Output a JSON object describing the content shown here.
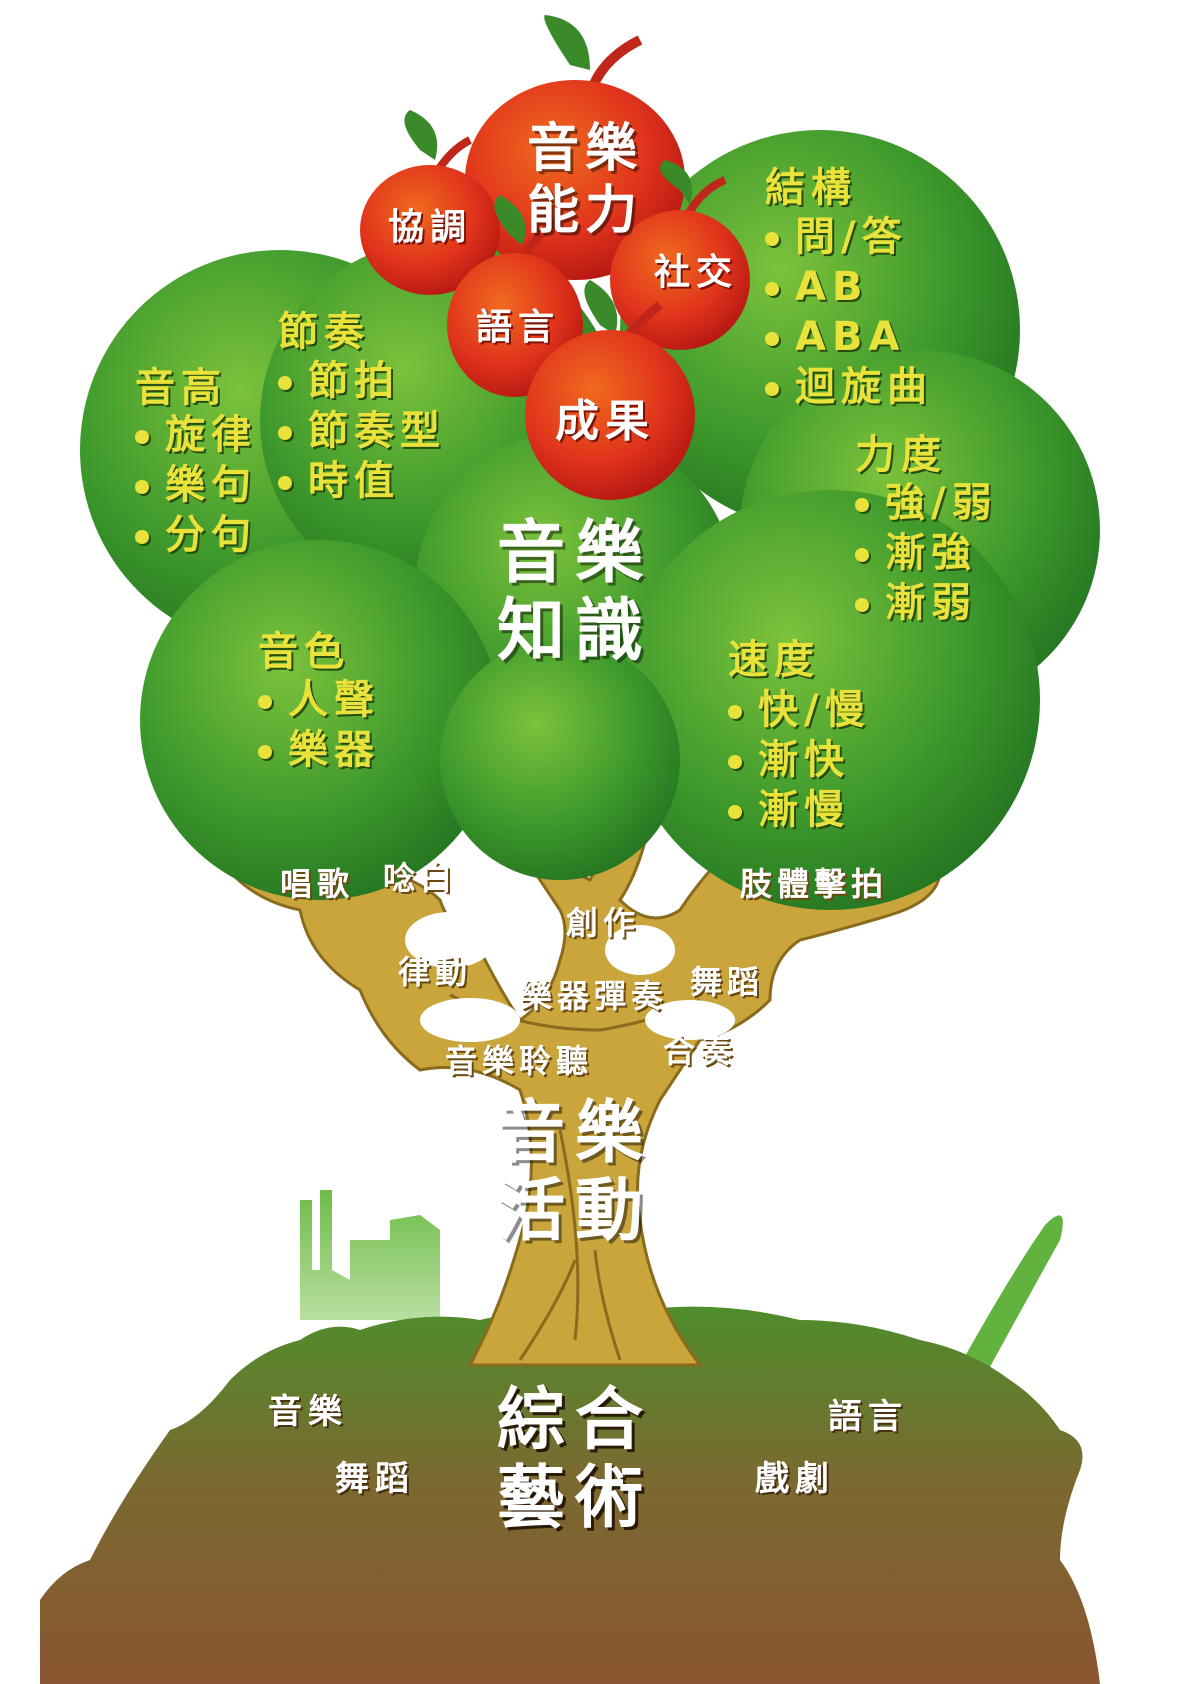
{
  "apples": {
    "main": "音樂能力",
    "coordination": "協調",
    "social": "社交",
    "language": "語言",
    "outcome": "成果"
  },
  "knowledge": {
    "center": "音樂知識",
    "structure": {
      "title": "結構",
      "items": [
        "問/答",
        "AB",
        "ABA",
        "迴旋曲"
      ]
    },
    "rhythm": {
      "title": "節奏",
      "items": [
        "節拍",
        "節奏型",
        "時值"
      ]
    },
    "pitch": {
      "title": "音高",
      "items": [
        "旋律",
        "樂句",
        "分句"
      ]
    },
    "dynamics": {
      "title": "力度",
      "items": [
        "強/弱",
        "漸強",
        "漸弱"
      ]
    },
    "timbre": {
      "title": "音色",
      "items": [
        "人聲",
        "樂器"
      ]
    },
    "tempo": {
      "title": "速度",
      "items": [
        "快/慢",
        "漸快",
        "漸慢"
      ]
    }
  },
  "activities": {
    "center": "音樂活動",
    "singing": "唱歌",
    "chanting": "唸白",
    "body_percussion": "肢體擊拍",
    "creating": "創作",
    "movement": "律動",
    "instrumental": "樂器彈奏",
    "dance": "舞蹈",
    "listening": "音樂聆聽",
    "ensemble": "合奏"
  },
  "integrated_arts": {
    "center": "綜合藝術",
    "music": "音樂",
    "dance": "舞蹈",
    "language": "語言",
    "drama": "戲劇"
  },
  "colors": {
    "foliage_dark": "#2f7d24",
    "foliage_light": "#6fbf3a",
    "trunk": "#c9a53c",
    "apple": "#e23a1c",
    "label_yellow": "#e8e23a",
    "soil": "#8a5a32",
    "grass": "#5a9e2a"
  }
}
